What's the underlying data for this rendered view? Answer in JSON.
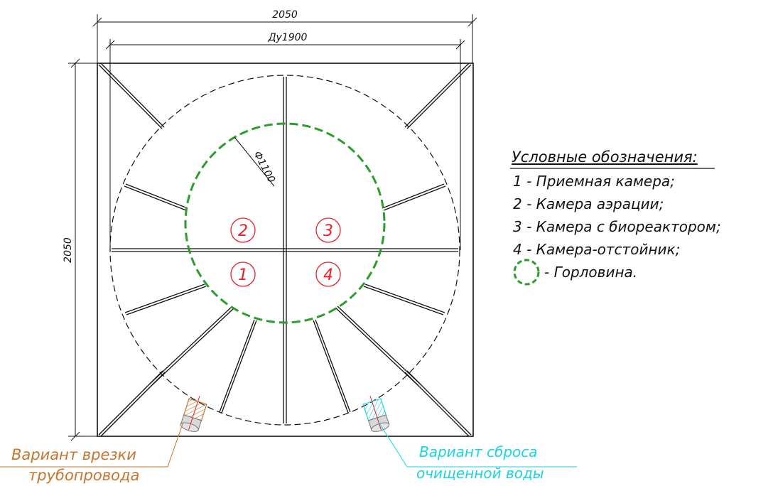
{
  "dimensions": {
    "outer_width": "2050",
    "inner_diameter": "Ду1900",
    "outer_height": "2050",
    "neck_diameter": "Ф1100"
  },
  "chambers": [
    {
      "number": "1"
    },
    {
      "number": "2"
    },
    {
      "number": "3"
    },
    {
      "number": "4"
    }
  ],
  "legend": {
    "title": "Условные обозначения:",
    "items": [
      "1 - Приемная камера;",
      "2 - Камера аэрации;",
      "3 - Камера с биореактором;",
      "4 - Камера-отстойник;",
      "- Горловина."
    ]
  },
  "callouts": {
    "inlet_line1": "Вариант врезки",
    "inlet_line2": "трубопровода",
    "outlet_line1": "Вариант сброса",
    "outlet_line2": "очищенной воды"
  },
  "colors": {
    "lines": "#111111",
    "neck": "#2a9d2a",
    "chamber_numbers": "#e8202a",
    "inlet": "#c8742c",
    "outlet": "#19d3e6"
  }
}
